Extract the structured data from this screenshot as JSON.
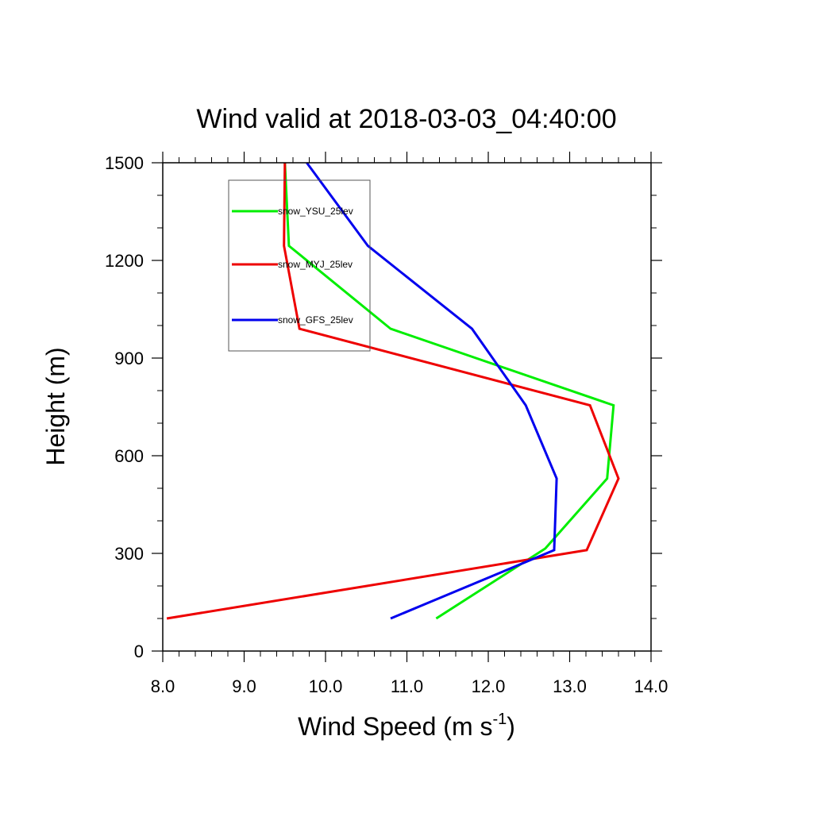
{
  "chart_data": {
    "type": "line",
    "title": "Wind valid at 2018-03-03_04:40:00",
    "xlabel": "Wind Speed (m s",
    "xlabel_superscript": "-1",
    "xlabel_suffix": ")",
    "ylabel": "Height (m)",
    "xlim": [
      8.0,
      14.0
    ],
    "ylim": [
      0,
      1500
    ],
    "x_ticks": [
      8.0,
      9.0,
      10.0,
      11.0,
      12.0,
      13.0,
      14.0
    ],
    "x_tick_labels": [
      "8.0",
      "9.0",
      "10.0",
      "11.0",
      "12.0",
      "13.0",
      "14.0"
    ],
    "y_ticks": [
      0,
      300,
      600,
      900,
      1200,
      1500
    ],
    "y_tick_labels": [
      "0",
      "300",
      "600",
      "900",
      "1200",
      "1500"
    ],
    "grid": false,
    "legend_position": "top-left",
    "series": [
      {
        "name": "snow_YSU_25lev",
        "color": "#00ee00",
        "x": [
          11.36,
          12.7,
          13.46,
          13.54,
          10.8,
          9.55,
          9.5
        ],
        "y": [
          100,
          315,
          530,
          755,
          990,
          1245,
          1500
        ]
      },
      {
        "name": "snow_MYJ_25lev",
        "color": "#ee0000",
        "x": [
          8.05,
          13.21,
          13.6,
          13.25,
          9.68,
          9.49,
          9.5
        ],
        "y": [
          100,
          310,
          530,
          755,
          990,
          1245,
          1500
        ]
      },
      {
        "name": "snow_GFS_25lev",
        "color": "#0000ee",
        "x": [
          10.8,
          12.81,
          12.84,
          12.46,
          11.8,
          10.52,
          9.77
        ],
        "y": [
          100,
          310,
          530,
          755,
          990,
          1245,
          1500
        ]
      }
    ]
  }
}
